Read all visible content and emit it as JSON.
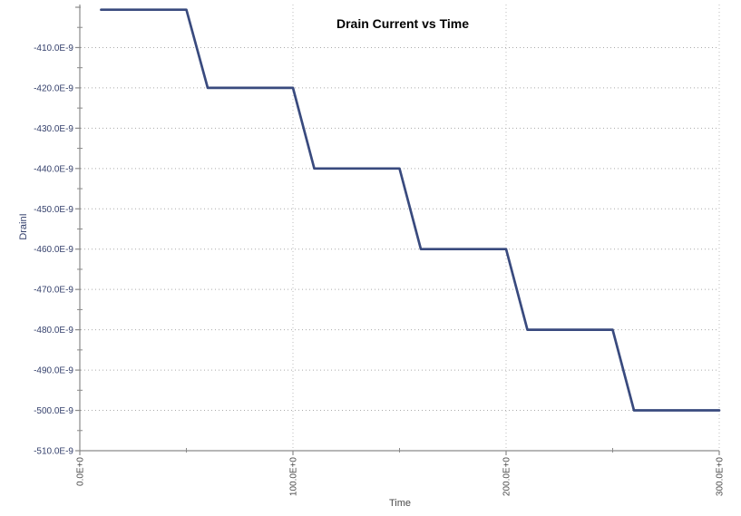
{
  "chart_data": {
    "type": "line",
    "title": "Drain Current vs Time",
    "xlabel": "Time",
    "ylabel": "DrainI",
    "grid": "dotted-major",
    "legend": "none",
    "x_axis": {
      "min": 0,
      "max": 300,
      "major_step": 100,
      "minor_ticks": [
        50,
        150,
        250
      ],
      "ticks": [
        {
          "value": 0,
          "label": "0.0E+0",
          "gridline": false
        },
        {
          "value": 100,
          "label": "100.0E+0",
          "gridline": true
        },
        {
          "value": 200,
          "label": "200.0E+0",
          "gridline": true
        },
        {
          "value": 300,
          "label": "300.0E+0",
          "gridline": true
        }
      ],
      "tick_label_rotation_deg": -90
    },
    "y_axis": {
      "min": -510,
      "max": -400,
      "unit": "E-9",
      "major_step": 10,
      "minor_step": 5,
      "ticks": [
        {
          "value": -400,
          "label": "",
          "gridline": false
        },
        {
          "value": -410,
          "label": "-410.0E-9",
          "gridline": true
        },
        {
          "value": -420,
          "label": "-420.0E-9",
          "gridline": true
        },
        {
          "value": -430,
          "label": "-430.0E-9",
          "gridline": true
        },
        {
          "value": -440,
          "label": "-440.0E-9",
          "gridline": true
        },
        {
          "value": -450,
          "label": "-450.0E-9",
          "gridline": true
        },
        {
          "value": -460,
          "label": "-460.0E-9",
          "gridline": true
        },
        {
          "value": -470,
          "label": "-470.0E-9",
          "gridline": true
        },
        {
          "value": -480,
          "label": "-480.0E-9",
          "gridline": true
        },
        {
          "value": -490,
          "label": "-490.0E-9",
          "gridline": true
        },
        {
          "value": -500,
          "label": "-500.0E-9",
          "gridline": true
        },
        {
          "value": -510,
          "label": "-510.0E-9",
          "gridline": false
        }
      ]
    },
    "series": [
      {
        "name": "DrainI",
        "x_unit": "Time (E+0)",
        "y_unit": "A (E-9)",
        "points": [
          [
            10,
            -400.6
          ],
          [
            50,
            -400.6
          ],
          [
            60,
            -420
          ],
          [
            100,
            -420
          ],
          [
            110,
            -440
          ],
          [
            150,
            -440
          ],
          [
            160,
            -460
          ],
          [
            200,
            -460
          ],
          [
            210,
            -480
          ],
          [
            250,
            -480
          ],
          [
            260,
            -500
          ],
          [
            300,
            -500
          ]
        ]
      }
    ]
  },
  "colors": {
    "series_line": "#394a7e",
    "y_tick_text": "#333f6b",
    "y_axis_title_text": "#333f6b",
    "x_tick_text": "#4b4b4b",
    "x_axis_title_text": "#4b4b4b",
    "title_text": "#000000",
    "axis_line": "#8a8a8a",
    "grid_major": "#aaaaaa",
    "grid_vertical": "#bcbcbc",
    "background": "#ffffff"
  }
}
